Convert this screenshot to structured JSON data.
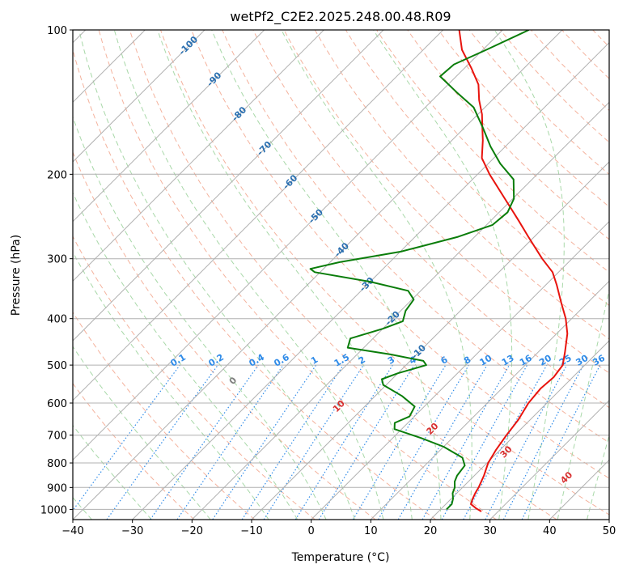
{
  "chart_data": {
    "type": "skew-t",
    "title": "wetPf2_C2E2.2025.248.00.48.R09",
    "xlabel": "Temperature (°C)",
    "ylabel": "Pressure (hPa)",
    "xlim": [
      -40,
      50
    ],
    "ylim": [
      1050,
      100
    ],
    "x_ticks": [
      "−40",
      "−30",
      "−20",
      "−10",
      "0",
      "10",
      "20",
      "30",
      "40",
      "50"
    ],
    "y_ticks": [
      "100",
      "200",
      "300",
      "400",
      "500",
      "600",
      "700",
      "800",
      "900",
      "1000"
    ],
    "colors": {
      "temperature": "#e8140e",
      "dewpoint": "#0a7d0a",
      "isotherm": "#b0b0b0",
      "dry_adiabat": "#f2a58c",
      "moist_adiabat": "#9ed49e",
      "mixing_ratio": "#2f8be8",
      "isotherm_label": "#2a6fb0",
      "moist_label": "#d83030"
    },
    "temperature_profile": [
      {
        "p": 1010,
        "t": 27.2
      },
      {
        "p": 995,
        "t": 25.8
      },
      {
        "p": 975,
        "t": 24.2
      },
      {
        "p": 950,
        "t": 23.6
      },
      {
        "p": 925,
        "t": 23.1
      },
      {
        "p": 900,
        "t": 22.7
      },
      {
        "p": 850,
        "t": 21.6
      },
      {
        "p": 800,
        "t": 20.2
      },
      {
        "p": 750,
        "t": 19.3
      },
      {
        "p": 700,
        "t": 18.6
      },
      {
        "p": 650,
        "t": 18.0
      },
      {
        "p": 600,
        "t": 16.9
      },
      {
        "p": 560,
        "t": 16.5
      },
      {
        "p": 530,
        "t": 16.8
      },
      {
        "p": 500,
        "t": 16.3
      },
      {
        "p": 470,
        "t": 14.5
      },
      {
        "p": 430,
        "t": 11.8
      },
      {
        "p": 400,
        "t": 9.0
      },
      {
        "p": 370,
        "t": 5.5
      },
      {
        "p": 340,
        "t": 1.8
      },
      {
        "p": 320,
        "t": -1.0
      },
      {
        "p": 300,
        "t": -5.0
      },
      {
        "p": 270,
        "t": -11.0
      },
      {
        "p": 250,
        "t": -15.3
      },
      {
        "p": 225,
        "t": -21.3
      },
      {
        "p": 200,
        "t": -28.0
      },
      {
        "p": 185,
        "t": -32.0
      },
      {
        "p": 170,
        "t": -34.8
      },
      {
        "p": 160,
        "t": -37.0
      },
      {
        "p": 150,
        "t": -39.3
      },
      {
        "p": 140,
        "t": -42.2
      },
      {
        "p": 130,
        "t": -44.9
      },
      {
        "p": 120,
        "t": -48.9
      },
      {
        "p": 110,
        "t": -53.5
      },
      {
        "p": 100,
        "t": -57.3
      }
    ],
    "dewpoint_profile": [
      {
        "p": 1000,
        "t": 21.0
      },
      {
        "p": 975,
        "t": 21.0
      },
      {
        "p": 950,
        "t": 20.3
      },
      {
        "p": 925,
        "t": 19.3
      },
      {
        "p": 900,
        "t": 18.7
      },
      {
        "p": 875,
        "t": 17.7
      },
      {
        "p": 850,
        "t": 17.1
      },
      {
        "p": 810,
        "t": 16.7
      },
      {
        "p": 780,
        "t": 15.0
      },
      {
        "p": 740,
        "t": 10.0
      },
      {
        "p": 710,
        "t": 4.8
      },
      {
        "p": 680,
        "t": -1.2
      },
      {
        "p": 660,
        "t": -2.2
      },
      {
        "p": 640,
        "t": -0.8
      },
      {
        "p": 610,
        "t": -1.6
      },
      {
        "p": 580,
        "t": -5.5
      },
      {
        "p": 550,
        "t": -10.5
      },
      {
        "p": 535,
        "t": -11.7
      },
      {
        "p": 520,
        "t": -10.0
      },
      {
        "p": 500,
        "t": -6.6
      },
      {
        "p": 490,
        "t": -7.8
      },
      {
        "p": 475,
        "t": -14.4
      },
      {
        "p": 460,
        "t": -22.7
      },
      {
        "p": 440,
        "t": -23.8
      },
      {
        "p": 420,
        "t": -20.0
      },
      {
        "p": 405,
        "t": -17.9
      },
      {
        "p": 385,
        "t": -19.2
      },
      {
        "p": 365,
        "t": -19.7
      },
      {
        "p": 350,
        "t": -22.1
      },
      {
        "p": 335,
        "t": -30.0
      },
      {
        "p": 320,
        "t": -40.9
      },
      {
        "p": 315,
        "t": -42.2
      },
      {
        "p": 305,
        "t": -38.4
      },
      {
        "p": 290,
        "t": -29.9
      },
      {
        "p": 270,
        "t": -22.8
      },
      {
        "p": 255,
        "t": -19.0
      },
      {
        "p": 240,
        "t": -18.6
      },
      {
        "p": 225,
        "t": -19.8
      },
      {
        "p": 205,
        "t": -23.1
      },
      {
        "p": 190,
        "t": -28.0
      },
      {
        "p": 175,
        "t": -32.5
      },
      {
        "p": 160,
        "t": -36.9
      },
      {
        "p": 145,
        "t": -41.9
      },
      {
        "p": 135,
        "t": -47.2
      },
      {
        "p": 125,
        "t": -52.7
      },
      {
        "p": 118,
        "t": -52.4
      },
      {
        "p": 110,
        "t": -49.4
      },
      {
        "p": 100,
        "t": -45.6
      }
    ],
    "isotherms": [
      -100,
      -90,
      -80,
      -70,
      -60,
      -50,
      -40,
      -30,
      -20,
      -10,
      0,
      10,
      20,
      30,
      40,
      50
    ],
    "isotherm_labels": [
      "-100",
      "-90",
      "-80",
      "-70",
      "-60",
      "-50",
      "-40",
      "-30",
      "-20",
      "-10"
    ],
    "dry_adiabats_theta_k": [
      250,
      260,
      270,
      280,
      290,
      300,
      310,
      320,
      330,
      340,
      350,
      360,
      370,
      380,
      390,
      400,
      410,
      420,
      430,
      440,
      450,
      460,
      470,
      480,
      490,
      500,
      510,
      520,
      530,
      540
    ],
    "moist_adiabats_c": [
      0,
      10,
      20,
      30,
      40
    ],
    "moist_adiabat_labels": [
      "0",
      "10",
      "20",
      "30",
      "40"
    ],
    "mixing_ratios": [
      0.1,
      0.2,
      0.4,
      0.6,
      1,
      1.5,
      2,
      3,
      4,
      6,
      8,
      10,
      13,
      16,
      20,
      25,
      30,
      36
    ],
    "mixing_ratio_labels": [
      "0.1",
      "0.2",
      "0.4",
      "0.6",
      "1",
      "1.5",
      "2",
      "3",
      "4",
      "6",
      "8",
      "10",
      "13",
      "16",
      "20",
      "25",
      "30",
      "36"
    ]
  }
}
